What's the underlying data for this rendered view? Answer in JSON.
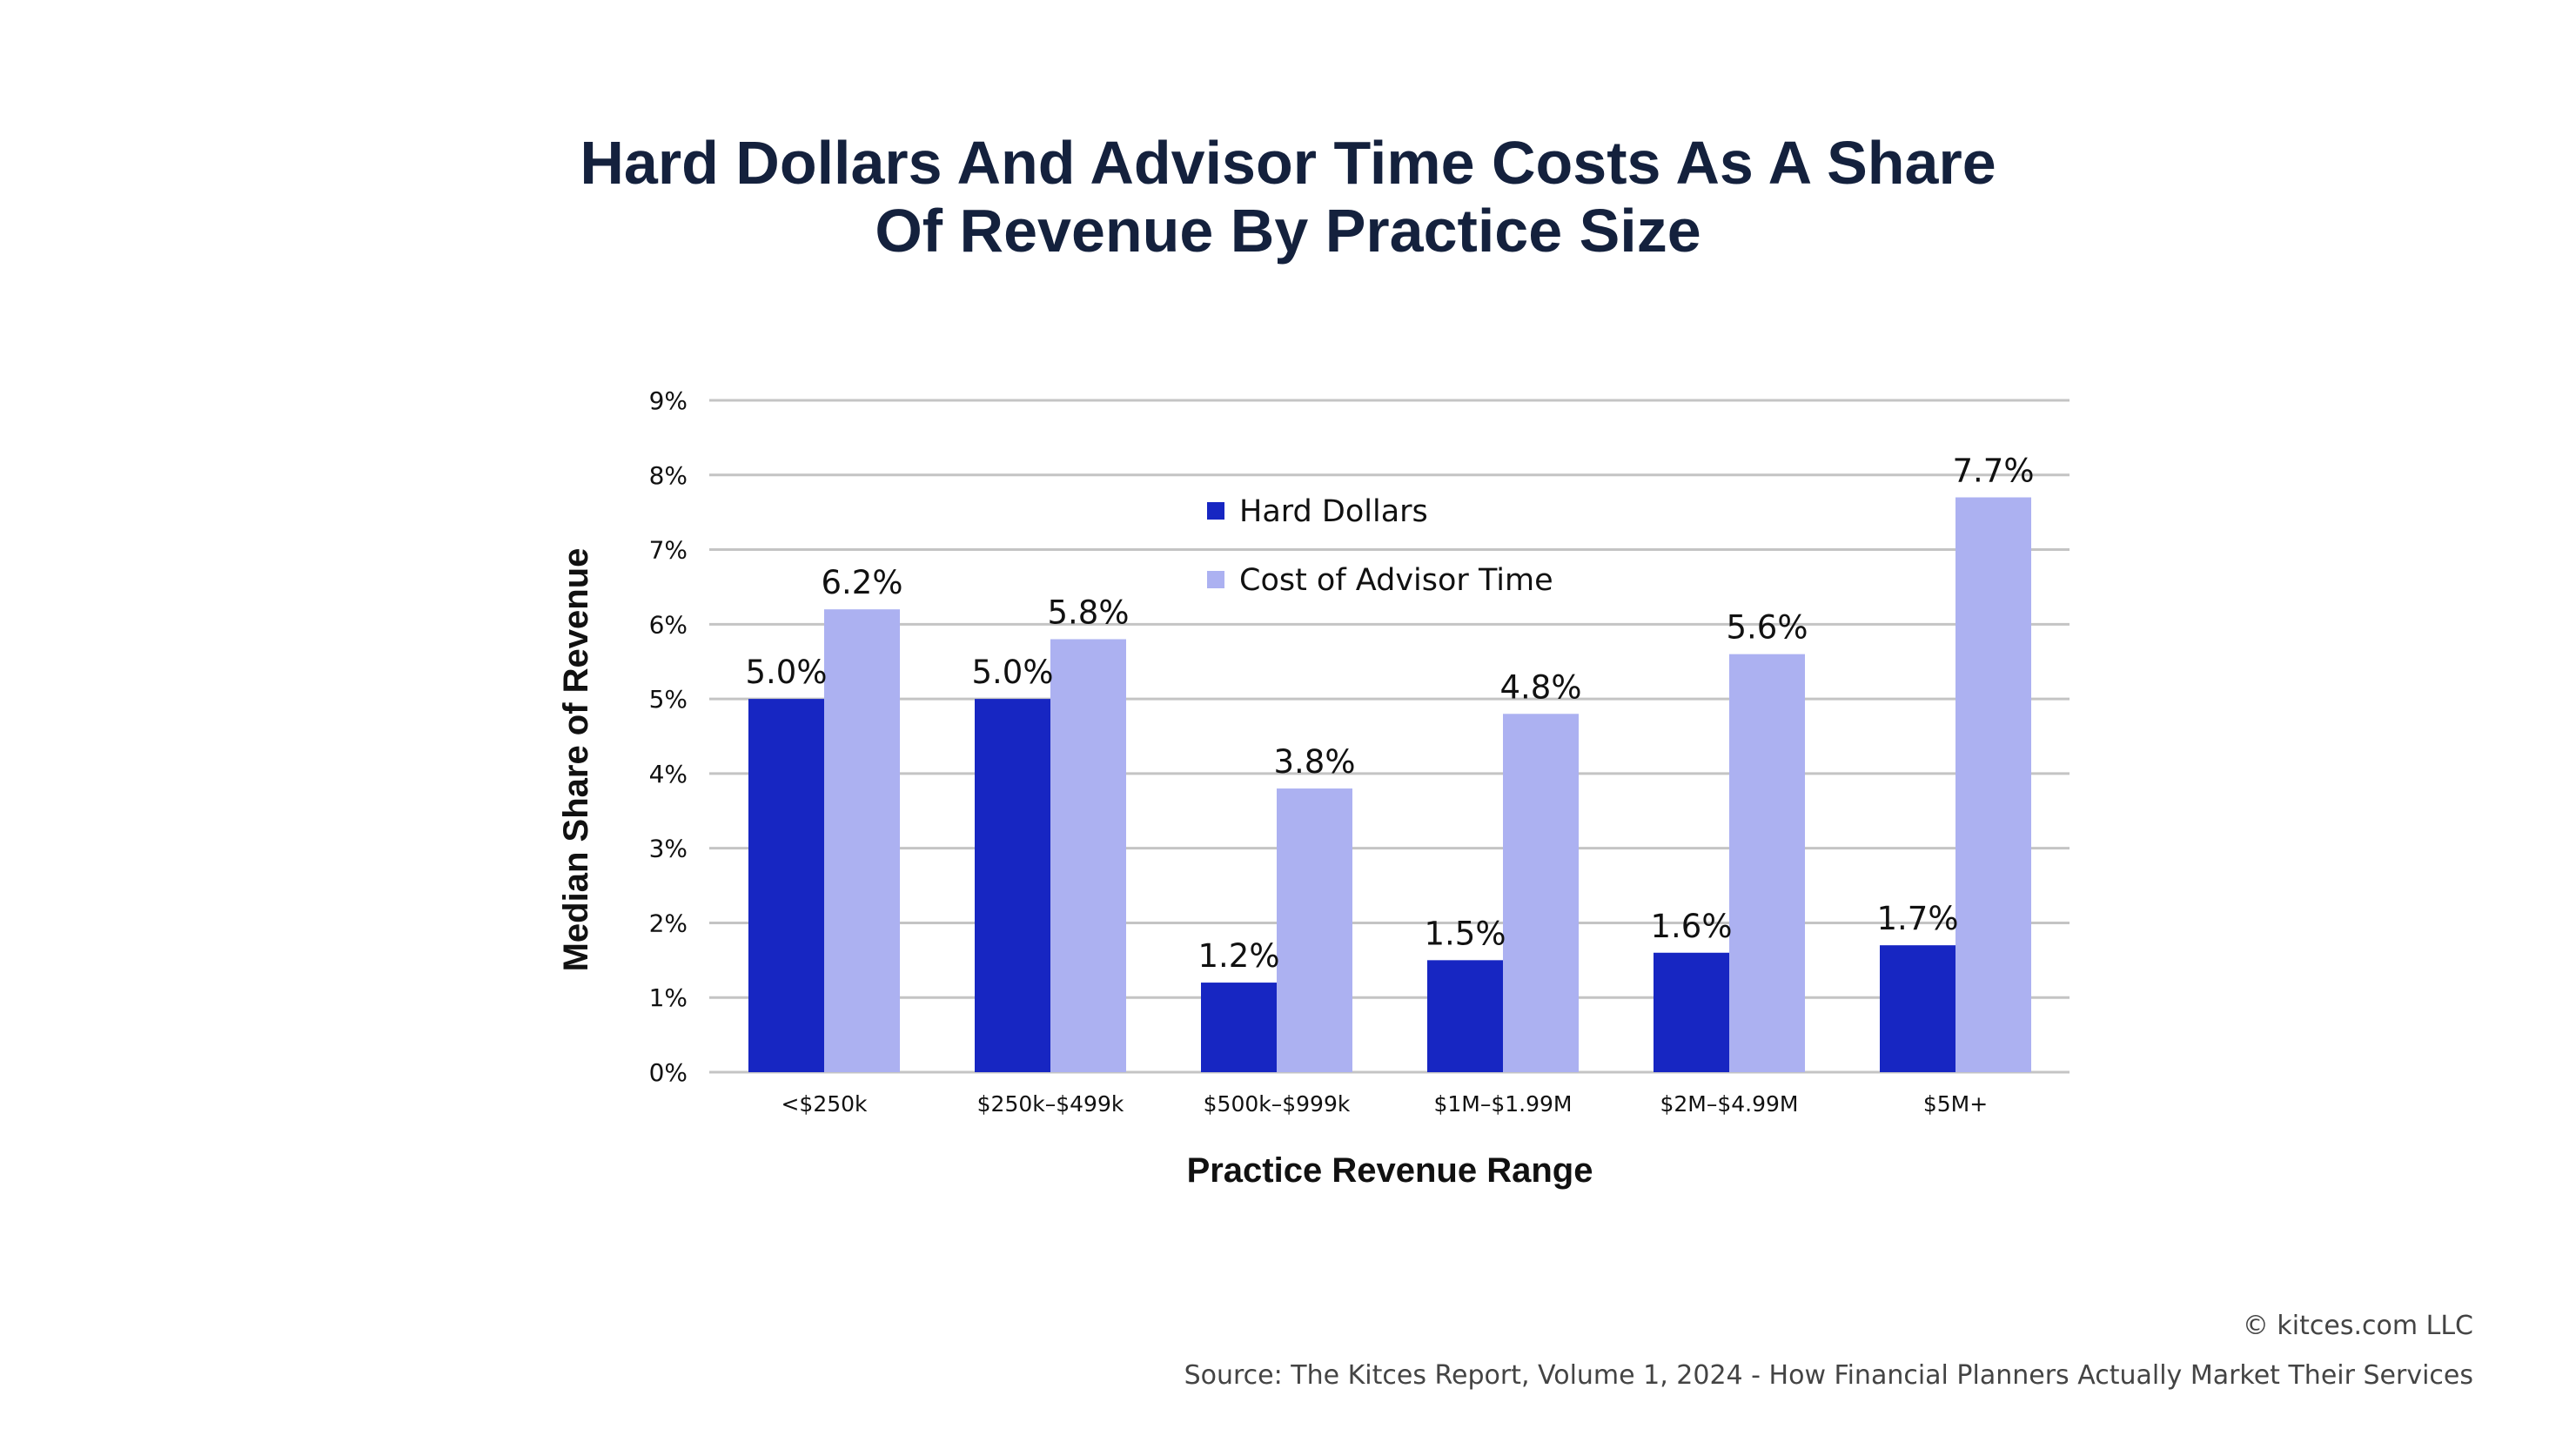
{
  "chart_data": {
    "type": "bar",
    "title_lines": [
      "Hard Dollars And Advisor Time Costs As A Share",
      "Of Revenue By Practice Size"
    ],
    "title": "Hard Dollars And Advisor Time Costs As A Share Of Revenue By Practice Size",
    "xlabel": "Practice Revenue Range",
    "ylabel": "Median Share of Revenue",
    "categories": [
      "<$250k",
      "$250k–$499k",
      "$500k–$999k",
      "$1M–$1.99M",
      "$2M–$4.99M",
      "$5M+"
    ],
    "series": [
      {
        "name": "Hard Dollars",
        "color": "#1726C2",
        "values": [
          5.0,
          5.0,
          1.2,
          1.5,
          1.6,
          1.7
        ],
        "labels": [
          "5.0%",
          "5.0%",
          "1.2%",
          "1.5%",
          "1.6%",
          "1.7%"
        ]
      },
      {
        "name": "Cost of Advisor Time",
        "color": "#ACB1F1",
        "values": [
          6.2,
          5.8,
          3.8,
          4.8,
          5.6,
          7.7
        ],
        "labels": [
          "6.2%",
          "5.8%",
          "3.8%",
          "4.8%",
          "5.6%",
          "7.7%"
        ]
      }
    ],
    "ylim": [
      0,
      9
    ],
    "yticks": [
      0,
      1,
      2,
      3,
      4,
      5,
      6,
      7,
      8,
      9
    ],
    "ytick_labels": [
      "0%",
      "1%",
      "2%",
      "3%",
      "4%",
      "5%",
      "6%",
      "7%",
      "8%",
      "9%"
    ],
    "grid": true,
    "gridline_color": "#C4C4C4",
    "legend_position": "top-center",
    "unit": "%"
  },
  "footer": {
    "copyright": "© kitces.com LLC",
    "source": "Source: The Kitces Report, Volume 1, 2024 - How Financial Planners Actually Market Their Services"
  },
  "colors": {
    "title": "#14213D",
    "hard_dollars": "#1726C2",
    "advisor_time": "#ACB1F1"
  }
}
